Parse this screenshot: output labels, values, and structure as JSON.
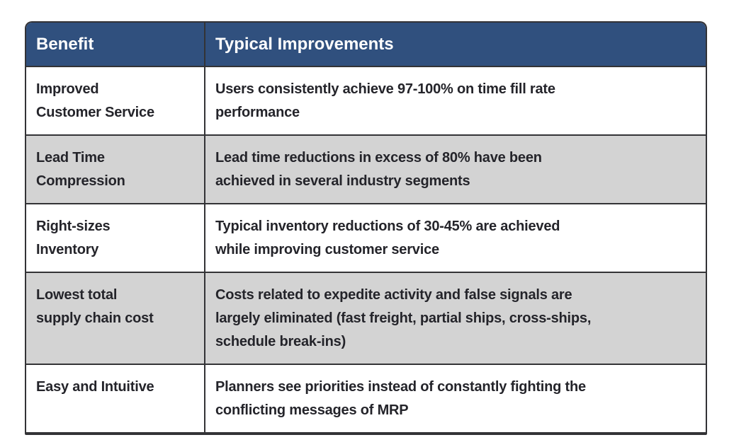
{
  "table": {
    "columns": [
      {
        "label": "Benefit"
      },
      {
        "label": "Typical Improvements"
      }
    ],
    "rows": [
      {
        "benefit": "Improved\nCustomer Service",
        "improvement": "Users consistently achieve 97-100% on time fill rate\nperformance"
      },
      {
        "benefit": "Lead Time\nCompression",
        "improvement": "Lead time reductions in excess of 80% have been\nachieved in several industry segments"
      },
      {
        "benefit": "Right-sizes\nInventory",
        "improvement": "Typical inventory reductions of 30-45% are achieved\nwhile improving customer service"
      },
      {
        "benefit": "Lowest total\nsupply chain cost",
        "improvement": "Costs related to expedite activity and false signals are\nlargely eliminated (fast freight, partial ships, cross-ships,\nschedule break-ins)"
      },
      {
        "benefit": "Easy and Intuitive",
        "improvement": "Planners see priorities instead of constantly fighting the\nconflicting messages of MRP"
      }
    ]
  },
  "colors": {
    "header_background": "#30507E",
    "header_text": "#FFFFFF",
    "alt_row_background": "#D3D3D3",
    "row_background": "#FFFFFF",
    "border": "#333336",
    "body_text": "#24242A"
  }
}
